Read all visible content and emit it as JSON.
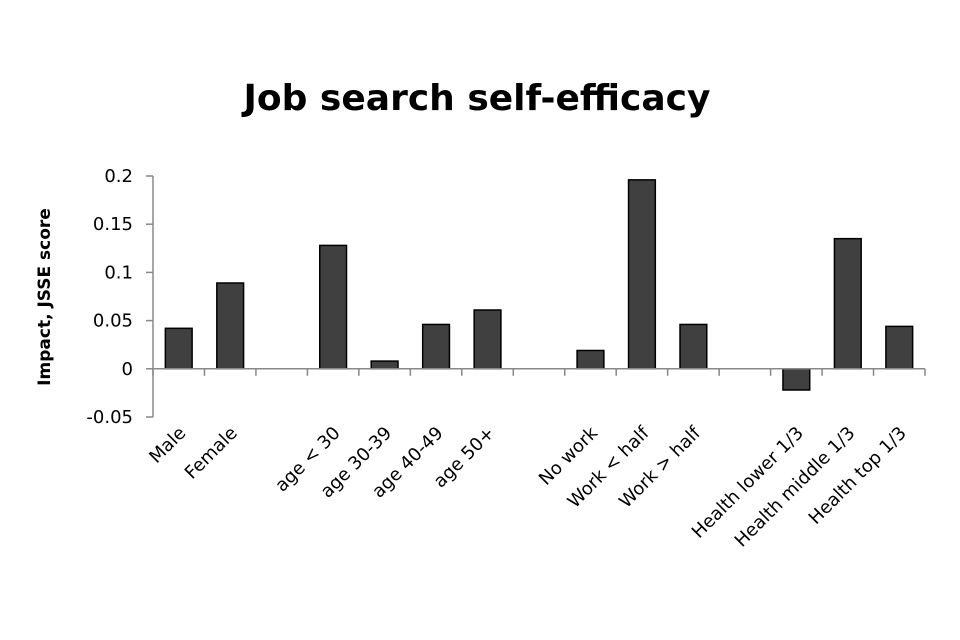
{
  "chart_data": {
    "type": "bar",
    "title": "Job search self-efficacy",
    "y_label": "Impact, JSSE score",
    "categories": [
      "Male",
      "Female",
      null,
      "age < 30",
      "age 30-39",
      "age 40-49",
      "age 50+",
      null,
      "No work",
      "Work < half",
      "Work > half",
      null,
      "Health lower 1/3",
      "Health middle 1/3",
      "Health top 1/3"
    ],
    "values": [
      0.042,
      0.089,
      null,
      0.128,
      0.008,
      0.046,
      0.061,
      null,
      0.019,
      0.196,
      0.046,
      null,
      -0.022,
      0.135,
      0.044
    ],
    "color": "#404040",
    "ylim": [
      -0.05,
      0.2
    ],
    "yticks": [
      0.2,
      0.15,
      0.1,
      0.05,
      0,
      -0.05
    ],
    "grid": false
  }
}
